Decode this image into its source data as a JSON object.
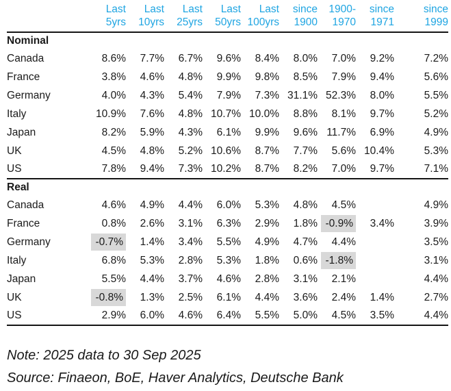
{
  "chart_data": {
    "type": "table",
    "columns": [
      "Last 5yrs",
      "Last 10yrs",
      "Last 25yrs",
      "Last 50yrs",
      "Last 100yrs",
      "since 1900",
      "1900-1970",
      "since 1971",
      "since 1999"
    ],
    "column_headers": [
      [
        "Last",
        "5yrs"
      ],
      [
        "Last",
        "10yrs"
      ],
      [
        "Last",
        "25yrs"
      ],
      [
        "Last",
        "50yrs"
      ],
      [
        "Last",
        "100yrs"
      ],
      [
        "since",
        "1900"
      ],
      [
        "1900-",
        "1970"
      ],
      [
        "since",
        "1971"
      ],
      [
        "since",
        "1999"
      ]
    ],
    "sections": [
      {
        "label": "Nominal",
        "rows": [
          {
            "label": "Canada",
            "values": [
              "8.6%",
              "7.7%",
              "6.7%",
              "9.6%",
              "8.4%",
              "8.0%",
              "7.0%",
              "9.2%",
              "7.2%"
            ],
            "highlighted_columns": []
          },
          {
            "label": "France",
            "values": [
              "3.8%",
              "4.6%",
              "4.8%",
              "9.9%",
              "9.8%",
              "8.5%",
              "7.9%",
              "9.4%",
              "5.6%"
            ],
            "highlighted_columns": []
          },
          {
            "label": "Germany",
            "values": [
              "4.0%",
              "4.3%",
              "5.4%",
              "7.9%",
              "7.3%",
              "31.1%",
              "52.3%",
              "8.0%",
              "5.5%"
            ],
            "highlighted_columns": []
          },
          {
            "label": "Italy",
            "values": [
              "10.9%",
              "7.6%",
              "4.8%",
              "10.7%",
              "10.0%",
              "8.8%",
              "8.1%",
              "9.7%",
              "5.2%"
            ],
            "highlighted_columns": []
          },
          {
            "label": "Japan",
            "values": [
              "8.2%",
              "5.9%",
              "4.3%",
              "6.1%",
              "9.9%",
              "9.6%",
              "11.7%",
              "6.9%",
              "4.9%"
            ],
            "highlighted_columns": []
          },
          {
            "label": "UK",
            "values": [
              "4.5%",
              "4.8%",
              "5.2%",
              "10.6%",
              "8.7%",
              "7.7%",
              "5.6%",
              "10.4%",
              "5.3%"
            ],
            "highlighted_columns": []
          },
          {
            "label": "US",
            "values": [
              "7.8%",
              "9.4%",
              "7.3%",
              "10.2%",
              "8.7%",
              "8.2%",
              "7.0%",
              "9.7%",
              "7.1%"
            ],
            "highlighted_columns": []
          }
        ]
      },
      {
        "label": "Real",
        "rows": [
          {
            "label": "Canada",
            "values": [
              "4.6%",
              "4.9%",
              "4.4%",
              "6.0%",
              "5.3%",
              "4.8%",
              "4.5%",
              "",
              "4.9%"
            ],
            "highlighted_columns": []
          },
          {
            "label": "France",
            "values": [
              "0.8%",
              "2.6%",
              "3.1%",
              "6.3%",
              "2.9%",
              "1.8%",
              "-0.9%",
              "3.4%",
              "3.9%"
            ],
            "highlighted_columns": [
              6
            ]
          },
          {
            "label": "Germany",
            "values": [
              "-0.7%",
              "1.4%",
              "3.4%",
              "5.5%",
              "4.9%",
              "4.7%",
              "4.4%",
              "",
              "3.5%"
            ],
            "highlighted_columns": [
              0
            ]
          },
          {
            "label": "Italy",
            "values": [
              "6.8%",
              "5.3%",
              "2.8%",
              "5.3%",
              "1.8%",
              "0.6%",
              "-1.8%",
              "",
              "3.1%"
            ],
            "highlighted_columns": [
              6
            ]
          },
          {
            "label": "Japan",
            "values": [
              "5.5%",
              "4.4%",
              "3.7%",
              "4.6%",
              "2.8%",
              "3.1%",
              "2.1%",
              "",
              "4.4%"
            ],
            "highlighted_columns": []
          },
          {
            "label": "UK",
            "values": [
              "-0.8%",
              "1.3%",
              "2.5%",
              "6.1%",
              "4.4%",
              "3.6%",
              "2.4%",
              "1.4%",
              "2.7%"
            ],
            "highlighted_columns": [
              0
            ]
          },
          {
            "label": "US",
            "values": [
              "2.9%",
              "6.0%",
              "4.6%",
              "6.4%",
              "5.5%",
              "5.0%",
              "4.5%",
              "3.5%",
              "4.4%"
            ],
            "highlighted_columns": []
          }
        ]
      }
    ]
  },
  "footer": {
    "note": "Note: 2025 data to 30 Sep 2025",
    "source": "Source: Finaeon, BoE, Haver Analytics, Deutsche Bank"
  },
  "colors": {
    "accent": "#1FA5E2",
    "highlight_bg": "#D8D8D8",
    "rule": "#141414",
    "text": "#1A1A1A",
    "background": "#FFFFFF"
  }
}
